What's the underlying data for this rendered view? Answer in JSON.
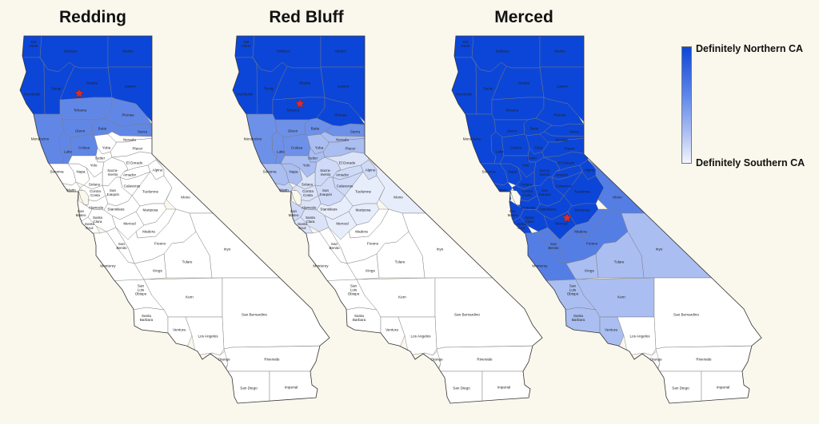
{
  "maps": [
    {
      "title": "Redding",
      "star": "star-icon",
      "levels": [
        1,
        1,
        1,
        1,
        1,
        1,
        1,
        0.65,
        0.65,
        0.65,
        0.65,
        0.65,
        0.65,
        0,
        0.65,
        0.65,
        0,
        0,
        0,
        0,
        0,
        0,
        0,
        0,
        0,
        0,
        0,
        0,
        0,
        0,
        0,
        0,
        0,
        0,
        0,
        0,
        0,
        0,
        0,
        0,
        0,
        0,
        0,
        0,
        0,
        0,
        0,
        0,
        0,
        0,
        0,
        0,
        0,
        0,
        0,
        0,
        0
      ]
    },
    {
      "title": "Red Bluff",
      "star": "star-icon",
      "levels": [
        1,
        1,
        1,
        1,
        1,
        1,
        1,
        1,
        1,
        0.6,
        0.6,
        0.6,
        0.6,
        0.35,
        0.6,
        0.6,
        0.35,
        0.35,
        0.35,
        0.35,
        0.35,
        0.35,
        0.15,
        0.2,
        0.2,
        0.2,
        0.25,
        0.15,
        0.15,
        0.2,
        0.2,
        0.1,
        0.1,
        0.15,
        0.2,
        0.15,
        0.15,
        0.1,
        0.1,
        0.1,
        0,
        0,
        0,
        0,
        0,
        0,
        0,
        0,
        0,
        0,
        0,
        0,
        0,
        0,
        0,
        0,
        0
      ]
    },
    {
      "title": "Merced",
      "star": "star-icon",
      "levels": [
        1,
        1,
        1,
        1,
        1,
        1,
        1,
        1,
        1,
        1,
        1,
        1,
        1,
        1,
        1,
        1,
        1,
        1,
        1,
        1,
        1,
        1,
        1,
        1,
        1,
        1,
        1,
        1,
        1,
        1,
        1,
        1,
        0.7,
        1,
        1,
        1,
        1,
        1,
        1,
        1,
        0.7,
        0.7,
        0.35,
        0.7,
        0.7,
        0.35,
        0.35,
        0.35,
        0.35,
        0,
        0.35,
        0.35,
        0,
        0,
        0,
        0,
        0
      ]
    }
  ],
  "counties": [
    [
      "Del",
      "Norte"
    ],
    [
      "Siskiyou"
    ],
    [
      "Modoc"
    ],
    [
      "Humboldt"
    ],
    [
      "Trinity"
    ],
    [
      "Shasta"
    ],
    [
      "Lassen"
    ],
    [
      "Tehama"
    ],
    [
      "Plumas"
    ],
    [
      "Mendocino"
    ],
    [
      "Glenn"
    ],
    [
      "Butte"
    ],
    [
      "Sierra"
    ],
    [
      "Nevada"
    ],
    [
      "Lake"
    ],
    [
      "Colusa"
    ],
    [
      "Yuba"
    ],
    [
      "Placer"
    ],
    [
      "Sutter"
    ],
    [
      "Sonoma"
    ],
    [
      "Napa"
    ],
    [
      "Yolo"
    ],
    [
      "El Dorado"
    ],
    [
      "Alpine"
    ],
    [
      "Sacra-",
      "mento"
    ],
    [
      "Amador"
    ],
    [
      "Marin"
    ],
    [
      "Solano"
    ],
    [
      "Contra",
      "Costa"
    ],
    [
      "San",
      "Joaquin"
    ],
    [
      "Calaveras"
    ],
    [
      "Tuolumne"
    ],
    [
      "Mono"
    ],
    [
      "Alameda"
    ],
    [
      "San",
      "Mateo"
    ],
    [
      "Santa",
      "Clara"
    ],
    [
      "Santa",
      "Cruz"
    ],
    [
      "Stanislaus"
    ],
    [
      "Mariposa"
    ],
    [
      "Merced"
    ],
    [
      "Madera"
    ],
    [
      "Fresno"
    ],
    [
      "Inyo"
    ],
    [
      "San",
      "Benito"
    ],
    [
      "Monterey"
    ],
    [
      "Tulare"
    ],
    [
      "Kings"
    ],
    [
      "San",
      "Luis",
      "Obispo"
    ],
    [
      "Kern"
    ],
    [
      "San Bernardino"
    ],
    [
      "Santa",
      "Barbara"
    ],
    [
      "Ventura"
    ],
    [
      "Los Angeles"
    ],
    [
      "Orange"
    ],
    [
      "Riverside"
    ],
    [
      "San Diego"
    ],
    [
      "Imperial"
    ]
  ],
  "legend": {
    "top_label": "Definitely Northern CA",
    "bottom_label": "Definitely Southern CA"
  },
  "colors": {
    "dark": "#0c46d8",
    "light": "#ffffff",
    "background": "#faf7ec",
    "star": "#d9302a",
    "border": "#7a7a7a"
  }
}
